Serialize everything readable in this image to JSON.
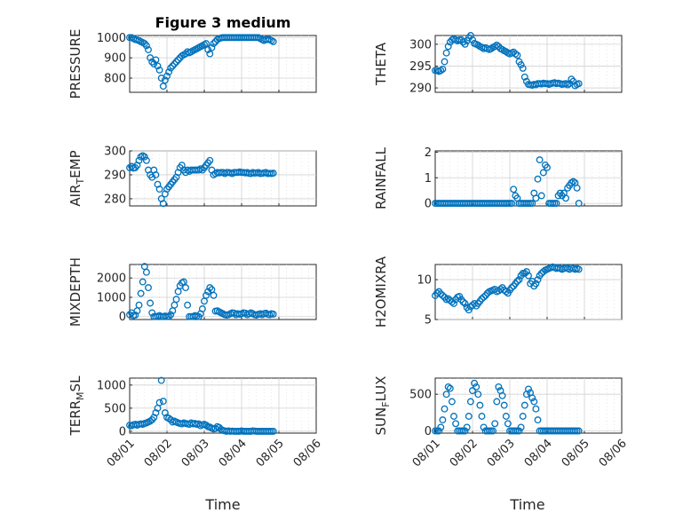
{
  "figure": {
    "title": "Figure 3 medium",
    "xlabel": "Time",
    "x_ticks": [
      "08/01",
      "08/02",
      "08/03",
      "08/04",
      "08/05",
      "08/06"
    ],
    "marker_color": "#0072BD"
  },
  "chart_data": [
    {
      "type": "scatter",
      "title": "Figure 3 medium",
      "ylabel": "PRESSURE",
      "ylim": [
        730,
        1010
      ],
      "yticks": [
        800,
        900,
        1000
      ],
      "grid": true,
      "x": [
        0.0,
        0.05,
        0.1,
        0.15,
        0.2,
        0.25,
        0.3,
        0.35,
        0.4,
        0.45,
        0.5,
        0.55,
        0.6,
        0.65,
        0.7,
        0.75,
        0.8,
        0.85,
        0.9,
        0.95,
        1.0,
        1.05,
        1.1,
        1.15,
        1.2,
        1.25,
        1.3,
        1.35,
        1.4,
        1.45,
        1.5,
        1.55,
        1.6,
        1.65,
        1.7,
        1.75,
        1.8,
        1.85,
        1.9,
        1.95,
        2.0,
        2.05,
        2.1,
        2.15,
        2.2,
        2.25,
        2.3,
        2.35,
        2.4,
        2.45,
        2.5,
        2.55,
        2.6,
        2.65,
        2.7,
        2.75,
        2.8,
        2.85,
        2.9,
        2.95,
        3.0,
        3.05,
        3.1,
        3.15,
        3.2,
        3.25,
        3.3,
        3.35,
        3.4,
        3.45,
        3.5,
        3.55,
        3.6,
        3.65,
        3.7,
        3.75,
        3.8,
        3.85
      ],
      "values": [
        1000,
        1000,
        995,
        990,
        988,
        985,
        980,
        975,
        970,
        960,
        940,
        900,
        880,
        870,
        890,
        860,
        840,
        800,
        760,
        790,
        810,
        830,
        850,
        860,
        870,
        880,
        890,
        900,
        910,
        915,
        920,
        930,
        925,
        930,
        935,
        940,
        945,
        950,
        955,
        960,
        965,
        970,
        940,
        920,
        950,
        970,
        980,
        990,
        995,
        998,
        1000,
        1000,
        1000,
        1000,
        1000,
        1000,
        1000,
        1000,
        1000,
        1000,
        1000,
        1000,
        1000,
        1000,
        1000,
        1000,
        1000,
        1000,
        1000,
        1000,
        995,
        990,
        985,
        990,
        990,
        990,
        985,
        980
      ]
    },
    {
      "type": "scatter",
      "ylabel": "THETA",
      "ylim": [
        289,
        302
      ],
      "yticks": [
        290,
        295,
        300
      ],
      "grid": true,
      "x": [
        0.0,
        0.05,
        0.1,
        0.15,
        0.2,
        0.25,
        0.3,
        0.35,
        0.4,
        0.45,
        0.5,
        0.55,
        0.6,
        0.65,
        0.7,
        0.75,
        0.8,
        0.85,
        0.9,
        0.95,
        1.0,
        1.05,
        1.1,
        1.15,
        1.2,
        1.25,
        1.3,
        1.35,
        1.4,
        1.45,
        1.5,
        1.55,
        1.6,
        1.65,
        1.7,
        1.75,
        1.8,
        1.85,
        1.9,
        1.95,
        2.0,
        2.05,
        2.1,
        2.15,
        2.2,
        2.25,
        2.3,
        2.35,
        2.4,
        2.45,
        2.5,
        2.55,
        2.6,
        2.65,
        2.7,
        2.75,
        2.8,
        2.85,
        2.9,
        2.95,
        3.0,
        3.05,
        3.1,
        3.15,
        3.2,
        3.25,
        3.3,
        3.35,
        3.4,
        3.45,
        3.5,
        3.55,
        3.6,
        3.65,
        3.7,
        3.75,
        3.8,
        3.85
      ],
      "values": [
        294,
        294,
        293.8,
        294,
        294.3,
        296,
        298,
        299.5,
        300.5,
        301,
        301.2,
        301,
        300.8,
        301,
        301,
        300.5,
        300,
        300.8,
        301.5,
        302,
        301,
        300.2,
        300,
        299.8,
        299.5,
        299.3,
        299,
        299.2,
        299,
        298.8,
        299,
        299.3,
        299.5,
        299.8,
        299.5,
        299,
        298.8,
        298.5,
        298.3,
        298,
        297.8,
        298,
        298.2,
        297.8,
        297.5,
        296,
        295.3,
        294.5,
        292.5,
        291.5,
        290.8,
        290.7,
        290.6,
        290.8,
        290.7,
        291,
        291,
        290.9,
        291.1,
        291,
        291,
        290.8,
        291,
        291.1,
        291.2,
        291,
        291.1,
        291,
        290.8,
        290.9,
        291,
        290.7,
        291,
        292,
        291.5,
        290.5,
        290.8,
        291
      ]
    },
    {
      "type": "scatter",
      "ylabel": "AIR_TEMP",
      "ylim": [
        277,
        300
      ],
      "yticks": [
        280,
        290,
        300
      ],
      "grid": true,
      "x": [
        0.0,
        0.05,
        0.1,
        0.15,
        0.2,
        0.25,
        0.3,
        0.35,
        0.4,
        0.45,
        0.5,
        0.55,
        0.6,
        0.65,
        0.7,
        0.75,
        0.8,
        0.85,
        0.9,
        0.95,
        1.0,
        1.05,
        1.1,
        1.15,
        1.2,
        1.25,
        1.3,
        1.35,
        1.4,
        1.45,
        1.5,
        1.55,
        1.6,
        1.65,
        1.7,
        1.75,
        1.8,
        1.85,
        1.9,
        1.95,
        2.0,
        2.05,
        2.1,
        2.15,
        2.2,
        2.25,
        2.3,
        2.35,
        2.4,
        2.45,
        2.5,
        2.55,
        2.6,
        2.65,
        2.7,
        2.75,
        2.8,
        2.85,
        2.9,
        2.95,
        3.0,
        3.05,
        3.1,
        3.15,
        3.2,
        3.25,
        3.3,
        3.35,
        3.4,
        3.45,
        3.5,
        3.55,
        3.6,
        3.65,
        3.7,
        3.75,
        3.8,
        3.85
      ],
      "values": [
        293,
        293.5,
        292.8,
        293,
        294,
        296,
        297.5,
        298,
        297.5,
        296,
        292,
        290,
        289,
        292,
        290,
        286,
        284,
        280,
        278,
        282,
        284,
        285,
        286,
        287,
        288,
        289,
        291,
        293,
        294,
        292,
        291,
        292,
        291.5,
        292,
        292,
        292,
        292,
        292,
        292.5,
        292,
        293,
        294,
        295,
        296,
        292,
        290,
        290.5,
        291,
        290.8,
        291,
        291,
        290.5,
        291,
        291,
        290.8,
        290.5,
        291,
        291,
        291,
        291.2,
        291,
        291,
        290.8,
        291,
        290.6,
        290.5,
        291,
        290.7,
        290.8,
        291,
        290.5,
        290.6,
        290.8,
        291,
        290.5,
        290.6,
        290.5,
        290.7
      ]
    },
    {
      "type": "scatter",
      "ylabel": "RAINFALL",
      "ylim": [
        -0.1,
        2.05
      ],
      "yticks": [
        0,
        1,
        2
      ],
      "grid": true,
      "x": [
        0.0,
        0.05,
        0.1,
        0.15,
        0.2,
        0.25,
        0.3,
        0.35,
        0.4,
        0.45,
        0.5,
        0.55,
        0.6,
        0.65,
        0.7,
        0.75,
        0.8,
        0.85,
        0.9,
        0.95,
        1.0,
        1.05,
        1.1,
        1.15,
        1.2,
        1.25,
        1.3,
        1.35,
        1.4,
        1.45,
        1.5,
        1.55,
        1.6,
        1.65,
        1.7,
        1.75,
        1.8,
        1.85,
        1.9,
        1.95,
        2.0,
        2.05,
        2.1,
        2.15,
        2.2,
        2.25,
        2.3,
        2.35,
        2.4,
        2.45,
        2.5,
        2.55,
        2.6,
        2.65,
        2.7,
        2.75,
        2.8,
        2.85,
        2.9,
        2.95,
        3.0,
        3.05,
        3.1,
        3.15,
        3.2,
        3.25,
        3.3,
        3.35,
        3.4,
        3.45,
        3.5,
        3.55,
        3.6,
        3.65,
        3.7,
        3.75,
        3.8,
        3.85
      ],
      "values": [
        0,
        0,
        0,
        0,
        0,
        0,
        0,
        0,
        0,
        0,
        0,
        0,
        0,
        0,
        0,
        0,
        0,
        0,
        0,
        0,
        0,
        0,
        0,
        0,
        0,
        0,
        0,
        0,
        0,
        0,
        0,
        0,
        0,
        0,
        0,
        0,
        0,
        0,
        0,
        0,
        0,
        0,
        0.55,
        0.3,
        0.2,
        0,
        0,
        0,
        0,
        0,
        0,
        0,
        0,
        0.4,
        0.2,
        0.95,
        1.7,
        0.3,
        1.2,
        1.5,
        1.4,
        0,
        0,
        0,
        0,
        0,
        0.3,
        0.4,
        0.3,
        0.4,
        0.2,
        0.6,
        0.7,
        0.8,
        0.85,
        0.8,
        0.6,
        0
      ]
    },
    {
      "type": "scatter",
      "ylabel": "MIXDEPTH",
      "ylim": [
        -150,
        2700
      ],
      "yticks": [
        0,
        1000,
        2000
      ],
      "grid": true,
      "x": [
        0.0,
        0.05,
        0.1,
        0.15,
        0.2,
        0.25,
        0.3,
        0.35,
        0.4,
        0.45,
        0.5,
        0.55,
        0.6,
        0.65,
        0.7,
        0.75,
        0.8,
        0.85,
        0.9,
        0.95,
        1.0,
        1.05,
        1.1,
        1.15,
        1.2,
        1.25,
        1.3,
        1.35,
        1.4,
        1.45,
        1.5,
        1.55,
        1.6,
        1.65,
        1.7,
        1.75,
        1.8,
        1.85,
        1.9,
        1.95,
        2.0,
        2.05,
        2.1,
        2.15,
        2.2,
        2.25,
        2.3,
        2.35,
        2.4,
        2.45,
        2.5,
        2.55,
        2.6,
        2.65,
        2.7,
        2.75,
        2.8,
        2.85,
        2.9,
        2.95,
        3.0,
        3.05,
        3.1,
        3.15,
        3.2,
        3.25,
        3.3,
        3.35,
        3.4,
        3.45,
        3.5,
        3.55,
        3.6,
        3.65,
        3.7,
        3.75,
        3.8,
        3.85
      ],
      "values": [
        100,
        200,
        50,
        80,
        300,
        600,
        1200,
        1800,
        2600,
        2300,
        1500,
        700,
        200,
        0,
        0,
        20,
        50,
        0,
        0,
        30,
        0,
        0,
        100,
        300,
        600,
        900,
        1300,
        1600,
        1750,
        1800,
        1500,
        600,
        0,
        0,
        0,
        50,
        30,
        0,
        150,
        400,
        800,
        1100,
        1300,
        1500,
        1400,
        1100,
        280,
        300,
        250,
        200,
        150,
        100,
        80,
        100,
        150,
        200,
        180,
        100,
        150,
        120,
        150,
        200,
        180,
        100,
        150,
        200,
        150,
        100,
        80,
        120,
        150,
        100,
        150,
        180,
        120,
        100,
        150,
        130
      ]
    },
    {
      "type": "scatter",
      "ylabel": "H2OMIXRA",
      "ylim": [
        5,
        11.9
      ],
      "yticks": [
        5,
        10
      ],
      "grid": true,
      "x": [
        0.0,
        0.05,
        0.1,
        0.15,
        0.2,
        0.25,
        0.3,
        0.35,
        0.4,
        0.45,
        0.5,
        0.55,
        0.6,
        0.65,
        0.7,
        0.75,
        0.8,
        0.85,
        0.9,
        0.95,
        1.0,
        1.05,
        1.1,
        1.15,
        1.2,
        1.25,
        1.3,
        1.35,
        1.4,
        1.45,
        1.5,
        1.55,
        1.6,
        1.65,
        1.7,
        1.75,
        1.8,
        1.85,
        1.9,
        1.95,
        2.0,
        2.05,
        2.1,
        2.15,
        2.2,
        2.25,
        2.3,
        2.35,
        2.4,
        2.45,
        2.5,
        2.55,
        2.6,
        2.65,
        2.7,
        2.75,
        2.8,
        2.85,
        2.9,
        2.95,
        3.0,
        3.05,
        3.1,
        3.15,
        3.2,
        3.25,
        3.3,
        3.35,
        3.4,
        3.45,
        3.5,
        3.55,
        3.6,
        3.65,
        3.7,
        3.75,
        3.8,
        3.85
      ],
      "values": [
        8,
        8.3,
        8.5,
        8.2,
        8,
        7.8,
        7.5,
        7.6,
        7.4,
        7.2,
        7,
        7.5,
        7.8,
        7.9,
        7.5,
        7.2,
        7,
        6.5,
        6.2,
        6.6,
        6.8,
        7,
        6.7,
        7,
        7.3,
        7.6,
        7.8,
        8,
        8.3,
        8.5,
        8.6,
        8.7,
        8.8,
        8.5,
        8.6,
        8.8,
        9,
        8.7,
        8.5,
        8.3,
        8.7,
        9,
        9.2,
        9.5,
        9.8,
        10,
        10.5,
        10.8,
        10.8,
        11,
        10.5,
        9.5,
        9.8,
        9.2,
        9.5,
        10,
        10.5,
        10.8,
        11,
        11.2,
        11.3,
        11.4,
        11.5,
        11.6,
        11.5,
        11.4,
        11.5,
        11.4,
        11.3,
        11.4,
        11.5,
        11.4,
        11.3,
        11.5,
        11.4,
        11.3,
        11.4,
        11.3
      ]
    },
    {
      "type": "scatter",
      "ylabel": "TERR_MSL",
      "ylim": [
        -40,
        1150
      ],
      "yticks": [
        0,
        500,
        1000
      ],
      "grid": true,
      "x": [
        0.0,
        0.05,
        0.1,
        0.15,
        0.2,
        0.25,
        0.3,
        0.35,
        0.4,
        0.45,
        0.5,
        0.55,
        0.6,
        0.65,
        0.7,
        0.75,
        0.8,
        0.85,
        0.9,
        0.95,
        1.0,
        1.05,
        1.1,
        1.15,
        1.2,
        1.25,
        1.3,
        1.35,
        1.4,
        1.45,
        1.5,
        1.55,
        1.6,
        1.65,
        1.7,
        1.75,
        1.8,
        1.85,
        1.9,
        1.95,
        2.0,
        2.05,
        2.1,
        2.15,
        2.2,
        2.25,
        2.3,
        2.35,
        2.4,
        2.45,
        2.5,
        2.55,
        2.6,
        2.65,
        2.7,
        2.75,
        2.8,
        2.85,
        2.9,
        2.95,
        3.0,
        3.05,
        3.1,
        3.15,
        3.2,
        3.25,
        3.3,
        3.35,
        3.4,
        3.45,
        3.5,
        3.55,
        3.6,
        3.65,
        3.7,
        3.75,
        3.8,
        3.85
      ],
      "values": [
        130,
        120,
        140,
        150,
        130,
        150,
        160,
        150,
        170,
        180,
        200,
        220,
        250,
        300,
        400,
        500,
        620,
        1100,
        650,
        400,
        300,
        280,
        250,
        200,
        220,
        200,
        180,
        170,
        160,
        180,
        170,
        160,
        150,
        180,
        160,
        170,
        150,
        160,
        120,
        140,
        150,
        130,
        100,
        90,
        70,
        50,
        60,
        100,
        80,
        40,
        20,
        10,
        0,
        10,
        0,
        5,
        0,
        0,
        0,
        0,
        10,
        0,
        0,
        0,
        0,
        0,
        10,
        5,
        0,
        0,
        0,
        0,
        0,
        0,
        0,
        0,
        0,
        0
      ]
    },
    {
      "type": "scatter",
      "ylabel": "SUN_FLUX",
      "ylim": [
        -30,
        720
      ],
      "yticks": [
        0,
        500
      ],
      "grid": true,
      "x": [
        0.0,
        0.05,
        0.1,
        0.15,
        0.2,
        0.25,
        0.3,
        0.35,
        0.4,
        0.45,
        0.5,
        0.55,
        0.6,
        0.65,
        0.7,
        0.75,
        0.8,
        0.85,
        0.9,
        0.95,
        1.0,
        1.05,
        1.1,
        1.15,
        1.2,
        1.25,
        1.3,
        1.35,
        1.4,
        1.45,
        1.5,
        1.55,
        1.6,
        1.65,
        1.7,
        1.75,
        1.8,
        1.85,
        1.9,
        1.95,
        2.0,
        2.05,
        2.1,
        2.15,
        2.2,
        2.25,
        2.3,
        2.35,
        2.4,
        2.45,
        2.5,
        2.55,
        2.6,
        2.65,
        2.7,
        2.75,
        2.8,
        2.85,
        2.9,
        2.95,
        3.0,
        3.05,
        3.1,
        3.15,
        3.2,
        3.25,
        3.3,
        3.35,
        3.4,
        3.45,
        3.5,
        3.55,
        3.6,
        3.65,
        3.7,
        3.75,
        3.8,
        3.85
      ],
      "values": [
        0,
        0,
        0,
        50,
        150,
        300,
        500,
        600,
        580,
        400,
        200,
        100,
        0,
        0,
        0,
        0,
        0,
        50,
        200,
        400,
        550,
        650,
        600,
        500,
        350,
        200,
        50,
        0,
        0,
        0,
        0,
        0,
        100,
        400,
        600,
        550,
        480,
        350,
        200,
        100,
        0,
        0,
        0,
        0,
        0,
        0,
        50,
        200,
        350,
        500,
        570,
        520,
        450,
        400,
        300,
        150,
        0,
        0,
        0,
        0,
        0,
        0,
        0,
        0,
        0,
        0,
        0,
        0,
        0,
        0,
        0,
        0,
        0,
        0,
        0,
        0,
        0,
        0
      ]
    }
  ]
}
